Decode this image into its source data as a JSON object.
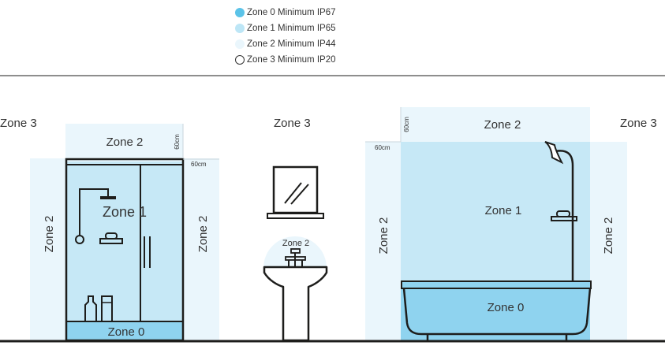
{
  "legend": [
    {
      "label": "Zone 0 Minimum IP67",
      "color": "#5bc3e8"
    },
    {
      "label": "Zone  1 Minimum IP65",
      "color": "#bde6f6"
    },
    {
      "label": "Zone 2 Minimum IP44",
      "color": "#eaf6fc"
    },
    {
      "label": "Zone 3 Minimum IP20",
      "color": "#ffffff"
    }
  ],
  "labels": {
    "zone0": "Zone 0",
    "zone1": "Zone 1",
    "zone2": "Zone 2",
    "zone3": "Zone 3",
    "cm60": "60cm"
  },
  "colors": {
    "zone0": "#8fd3ef",
    "zone1": "#c6e8f6",
    "zone2": "#eaf6fc",
    "line": "#1d1d1b"
  }
}
